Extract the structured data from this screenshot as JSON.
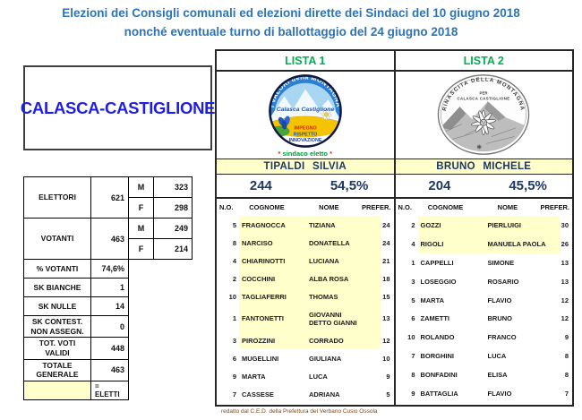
{
  "page": {
    "title_line1": "Elezioni dei Consigli comunali ed elezioni dirette dei Sindaci del 10 giugno 2018",
    "title_line2": "nonché eventuale turno di ballottaggio del 24 giugno 2018",
    "municipality": "CALASCA-CASTIGLIONE",
    "footer": "redatto dal C.E.D. della Prefettura del Verbano Cusio Ossola"
  },
  "colors": {
    "title_blue": "#2E74B5",
    "list_header_green": "#00B050",
    "navy_values": "#1F3864",
    "municipality_blue": "#1E1EE0",
    "elected_highlight_yellow": "#FFFFCC",
    "sindaco_note_green": "#00963C",
    "sindaco_note_asterisk_red": "#D03500",
    "footer_brown": "#7A4A1E"
  },
  "stats": {
    "rows": [
      {
        "label": "ELETTORI",
        "value": "621",
        "mf": [
          [
            "M",
            "323"
          ],
          [
            "F",
            "298"
          ]
        ]
      },
      {
        "label": "VOTANTI",
        "value": "463",
        "mf": [
          [
            "M",
            "249"
          ],
          [
            "F",
            "214"
          ]
        ]
      },
      {
        "label": "% VOTANTI",
        "value": "74,6%"
      },
      {
        "label": "SK BIANCHE",
        "value": "1"
      },
      {
        "label": "SK NULLE",
        "value": "14"
      },
      {
        "label": "SK CONTEST. NON ASSEGN.",
        "value": "0"
      },
      {
        "label": "TOT. VOTI VALIDI",
        "value": "448"
      },
      {
        "label": "TOTALE GENERALE",
        "value": "463"
      }
    ],
    "eletti_legend": "= ELETTI"
  },
  "lists": [
    {
      "header": "LISTA 1",
      "logo": {
        "name": "valori-della-montagna-logo",
        "arc_top": "I VALORI della MONTAGNA",
        "center": "Calasca Castiglione",
        "motto1": "IMPEGNO",
        "motto2": "RISPETTO",
        "motto3": "INNOVAZIONE"
      },
      "sindaco_note": "sindaco eletto",
      "mayor": "TIPALDI  SILVIA",
      "votes": "244",
      "percent": "54,5%",
      "columns": [
        "N.O.",
        "COGNOME",
        "NOME",
        "PREFER."
      ],
      "rows": [
        {
          "no": "5",
          "cognome": "FRAGNOCCA",
          "nome": [
            "TIZIANA"
          ],
          "prefer": "24",
          "elected": true
        },
        {
          "no": "8",
          "cognome": "NARCISO",
          "nome": [
            "DONATELLA"
          ],
          "prefer": "24",
          "elected": true
        },
        {
          "no": "4",
          "cognome": "CHIARINOTTI",
          "nome": [
            "LUCIANA"
          ],
          "prefer": "21",
          "elected": true
        },
        {
          "no": "2",
          "cognome": "COCCHINI",
          "nome": [
            "ALBA ROSA"
          ],
          "prefer": "18",
          "elected": true
        },
        {
          "no": "10",
          "cognome": "TAGLIAFERRI",
          "nome": [
            "THOMAS"
          ],
          "prefer": "15",
          "elected": true
        },
        {
          "no": "1",
          "cognome": "FANTONETTI",
          "nome": [
            "GIOVANNI",
            "DETTO GIANNI"
          ],
          "prefer": "13",
          "elected": true
        },
        {
          "no": "3",
          "cognome": "PIROZZINI",
          "nome": [
            "CORRADO"
          ],
          "prefer": "12",
          "elected": true
        },
        {
          "no": "6",
          "cognome": "MUGELLINI",
          "nome": [
            "GIULIANA"
          ],
          "prefer": "10",
          "elected": false
        },
        {
          "no": "9",
          "cognome": "MARTA",
          "nome": [
            "LUCA"
          ],
          "prefer": "9",
          "elected": false
        },
        {
          "no": "7",
          "cognome": "CASSESE",
          "nome": [
            "ADRIANA"
          ],
          "prefer": "5",
          "elected": false
        }
      ]
    },
    {
      "header": "LISTA 2",
      "logo": {
        "name": "rinascita-della-montagna-logo",
        "arc_top": "RINASCITA DELLA MONTAGNA",
        "center1": "PER",
        "center2": "CALASCA CASTIGLIONE"
      },
      "mayor": "BRUNO  MICHELE",
      "votes": "204",
      "percent": "45,5%",
      "columns": [
        "N.O.",
        "COGNOME",
        "NOME",
        "PREFER."
      ],
      "rows": [
        {
          "no": "2",
          "cognome": "GOZZI",
          "nome": [
            "PIERLUIGI"
          ],
          "prefer": "30",
          "elected": true
        },
        {
          "no": "4",
          "cognome": "RIGOLI",
          "nome": [
            "MANUELA PAOLA"
          ],
          "prefer": "26",
          "elected": true
        },
        {
          "no": "1",
          "cognome": "CAPPELLI",
          "nome": [
            "SIMONE"
          ],
          "prefer": "13",
          "elected": false
        },
        {
          "no": "3",
          "cognome": "LOSEGGIO",
          "nome": [
            "ROSARIO"
          ],
          "prefer": "13",
          "elected": false
        },
        {
          "no": "5",
          "cognome": "MARTA",
          "nome": [
            "FLAVIO"
          ],
          "prefer": "12",
          "elected": false
        },
        {
          "no": "6",
          "cognome": "ZAMETTI",
          "nome": [
            "BRUNO"
          ],
          "prefer": "12",
          "elected": false
        },
        {
          "no": "10",
          "cognome": "ROLANDO",
          "nome": [
            "FRANCO"
          ],
          "prefer": "9",
          "elected": false
        },
        {
          "no": "7",
          "cognome": "BORGHINI",
          "nome": [
            "LUCA"
          ],
          "prefer": "8",
          "elected": false
        },
        {
          "no": "8",
          "cognome": "BONFADINI",
          "nome": [
            "ELISA"
          ],
          "prefer": "8",
          "elected": false
        },
        {
          "no": "9",
          "cognome": "BATTAGLIA",
          "nome": [
            "FLAVIO"
          ],
          "prefer": "7",
          "elected": false
        }
      ]
    }
  ]
}
